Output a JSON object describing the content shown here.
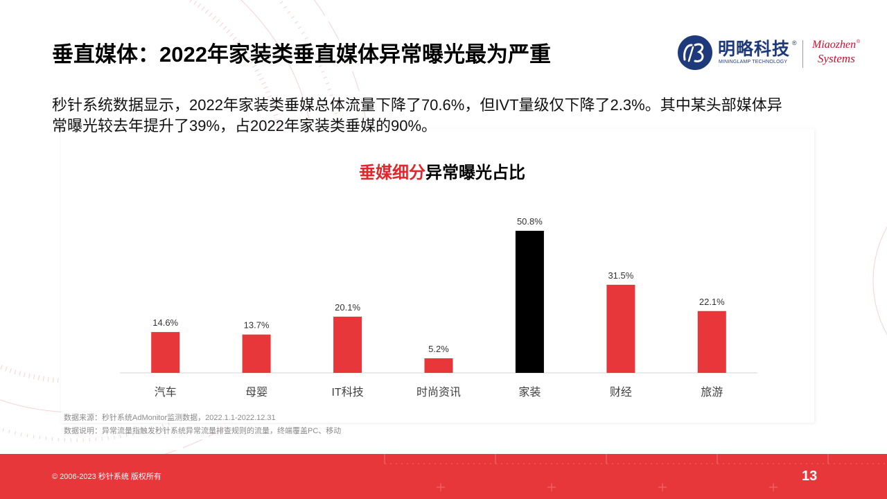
{
  "slide": {
    "title": "垂直媒体：2022年家装类垂直媒体异常曝光最为严重",
    "summary_lines": [
      "秒针系统数据显示，2022年家装类垂媒总体流量下降了70.6%，但IVT量级仅下降了2.3%。其中某头部媒体异",
      "常曝光较去年提升了39%，占2022年家装类垂媒的90%。"
    ]
  },
  "logo": {
    "icon": "mininglamp-logo-icon",
    "cn_name": "明略科技",
    "registered_mark": "®",
    "en_name": "MININGLAMP TECHNOLOGY",
    "brand_line1": "Miaozhen",
    "brand_registered_mark": "®",
    "brand_line2": "Systems"
  },
  "chart_data": {
    "type": "bar",
    "title_highlight": "垂媒细分",
    "title_rest": "异常曝光占比",
    "categories": [
      "汽车",
      "母婴",
      "IT科技",
      "时尚资讯",
      "家装",
      "财经",
      "旅游"
    ],
    "values": [
      14.6,
      13.7,
      20.1,
      5.2,
      50.8,
      31.5,
      22.1
    ],
    "data_labels": [
      "14.6%",
      "13.7%",
      "20.1%",
      "5.2%",
      "50.8%",
      "31.5%",
      "22.1%"
    ],
    "highlight_index": 4,
    "bar_color": "#E8373B",
    "highlight_color": "#000000",
    "xlabel": "",
    "ylabel": "",
    "grid": false
  },
  "footnotes": {
    "source": "数据来源：秒针系统AdMonitor监测数据，2022.1.1-2022.12.31",
    "note": "数据说明：异常流量指触发秒针系统异常流量排查规则的流量，终端覆盖PC、移动"
  },
  "footer": {
    "copyright": "© 2006-2023 秒针系统 版权所有",
    "page_number": "13"
  },
  "colors": {
    "accent": "#E8373B",
    "title_highlight": "#E3262C",
    "logo_blue": "#1E3A7B",
    "brand_red": "#C8102E",
    "decoration": "#F4C2C4"
  }
}
